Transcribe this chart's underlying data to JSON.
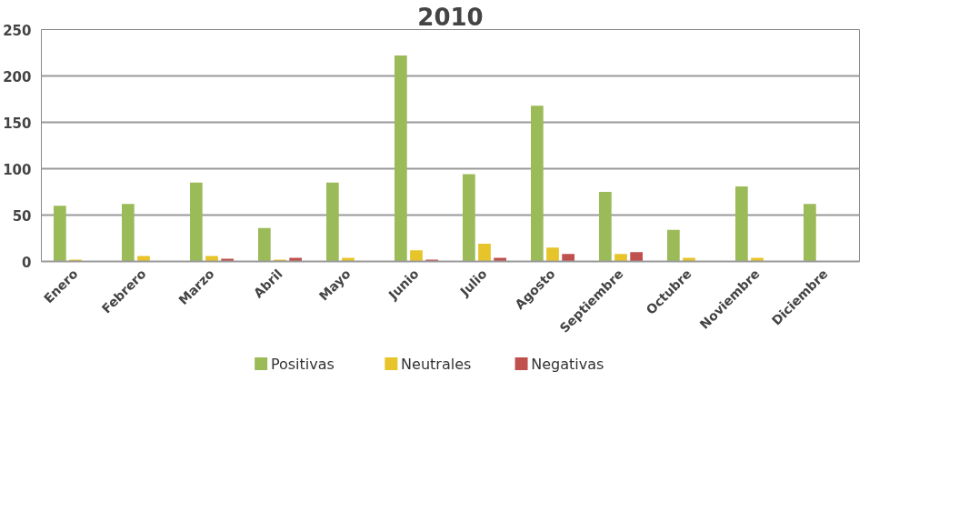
{
  "chart_data": {
    "type": "bar",
    "title": "2010",
    "categories": [
      "Enero",
      "Febrero",
      "Marzo",
      "Abril",
      "Mayo",
      "Junio",
      "Julio",
      "Agosto",
      "Septiembre",
      "Octubre",
      "Noviembre",
      "Diciembre"
    ],
    "series": [
      {
        "name": "Positivas",
        "color": "#9bbb59",
        "values": [
          60,
          62,
          85,
          36,
          85,
          222,
          94,
          168,
          75,
          34,
          81,
          62
        ]
      },
      {
        "name": "Neutrales",
        "color": "#e6c42a",
        "values": [
          2,
          6,
          6,
          2,
          4,
          12,
          19,
          15,
          8,
          4,
          4,
          0
        ]
      },
      {
        "name": "Negativas",
        "color": "#c0504d",
        "values": [
          0,
          0,
          3,
          4,
          0,
          2,
          4,
          8,
          10,
          0,
          0,
          0
        ]
      }
    ],
    "ylim": [
      0,
      250
    ],
    "yticks": [
      {
        "value": 0,
        "label": "0"
      },
      {
        "value": 50,
        "label": "50"
      },
      {
        "value": 100,
        "label": "100"
      },
      {
        "value": 150,
        "label": "150"
      },
      {
        "value": 200,
        "label": "200"
      },
      {
        "value": 250,
        "label": "250"
      }
    ],
    "grid": "y",
    "legend": "bottom"
  }
}
